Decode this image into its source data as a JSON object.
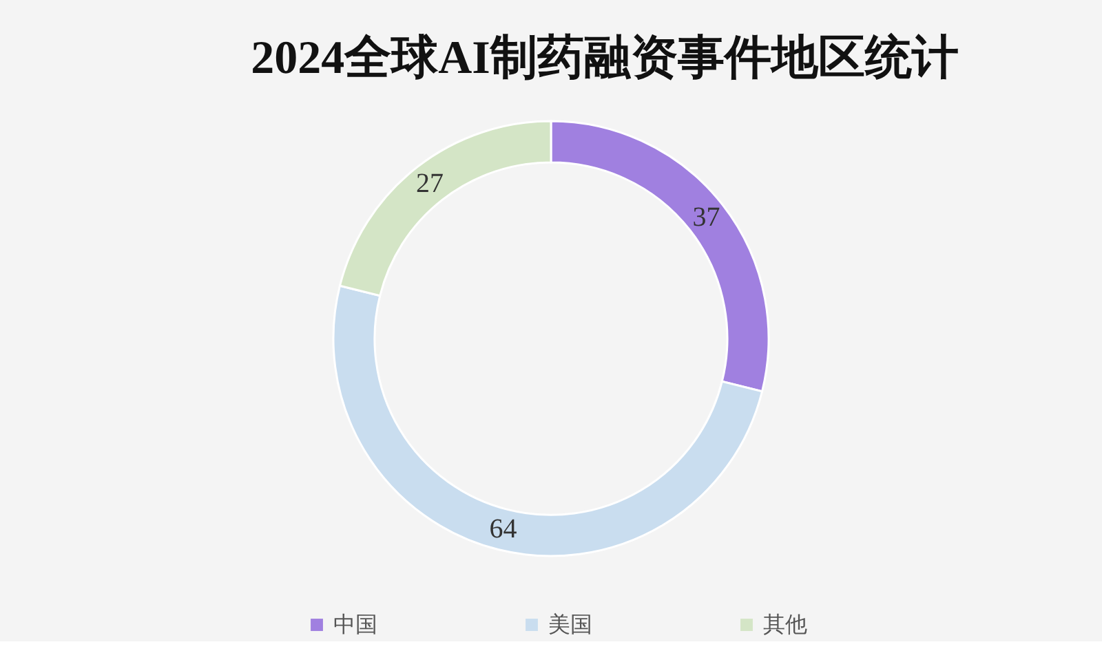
{
  "chart_data": {
    "type": "donut",
    "title": "2024全球AI制药融资事件地区统计",
    "categories": [
      "中国",
      "美国",
      "其他"
    ],
    "values": [
      37,
      64,
      27
    ],
    "colors": [
      "#a080e0",
      "#c9ddef",
      "#d4e5c6"
    ],
    "data_labels": true,
    "legend": "bottom"
  }
}
